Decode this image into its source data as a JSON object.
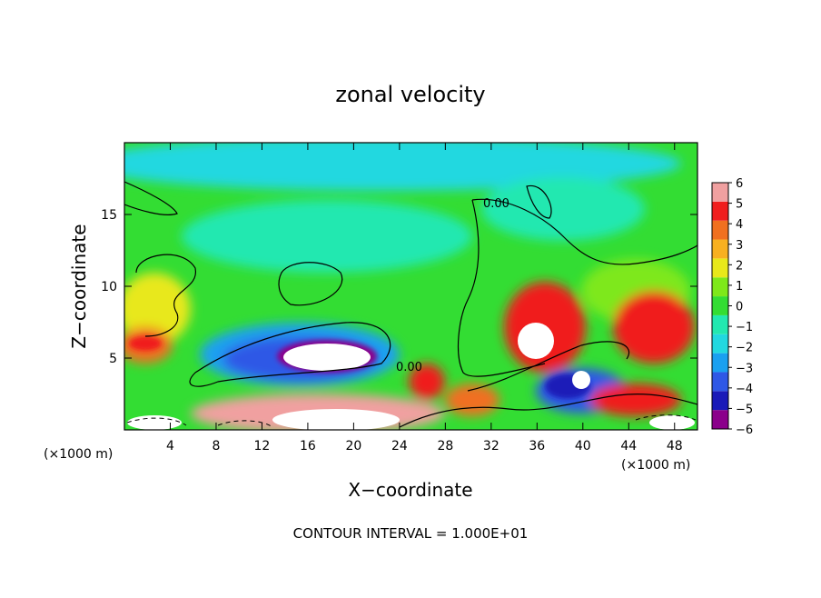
{
  "chart_data": {
    "type": "heatmap",
    "title": "zonal velocity",
    "xlabel": "X−coordinate",
    "ylabel": "Z−coordinate",
    "x_unit_left": "(×1000 m)",
    "x_unit_right": "(×1000 m)",
    "footer": "CONTOUR INTERVAL = 1.000E+01",
    "contour_label": "0.00",
    "contour_label_2": "0.00",
    "xlim": [
      0,
      50
    ],
    "ylim": [
      0,
      20
    ],
    "x_ticks": [
      4,
      8,
      12,
      16,
      20,
      24,
      28,
      32,
      36,
      40,
      44,
      48
    ],
    "x_tick_labels": [
      "4",
      "8",
      "12",
      "16",
      "20",
      "24",
      "28",
      "32",
      "36",
      "40",
      "44",
      "48"
    ],
    "y_ticks": [
      5,
      10,
      15
    ],
    "y_tick_labels": [
      "5",
      "10",
      "15"
    ],
    "colorbar": {
      "range": [
        -6,
        6
      ],
      "tick_labels": [
        "6",
        "5",
        "4",
        "3",
        "2",
        "1",
        "0",
        "−1",
        "−2",
        "−3",
        "−4",
        "−5",
        "−6"
      ],
      "colors": [
        "#8b008b",
        "#1a1ab8",
        "#2f58e6",
        "#1aa0f0",
        "#22d8e0",
        "#22e8b0",
        "#33dd33",
        "#7ee81a",
        "#e8e81a",
        "#f8b020",
        "#f07020",
        "#f01e1e",
        "#f0a0a0"
      ]
    },
    "zero_contour": "solid black lines",
    "negative_contour": "dashed black lines",
    "grid": false,
    "legend": "right"
  }
}
